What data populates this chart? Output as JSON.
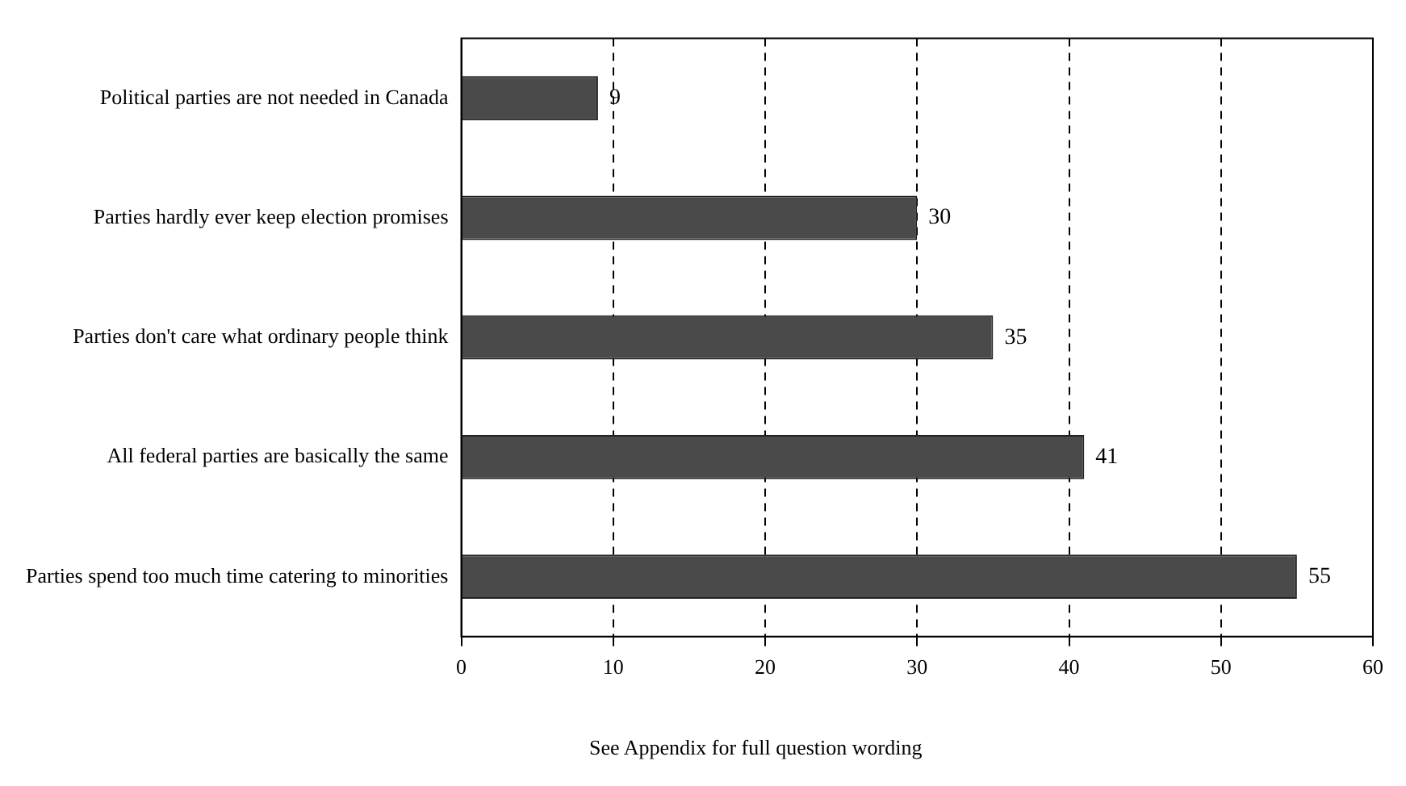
{
  "chart_data": {
    "type": "bar",
    "orientation": "horizontal",
    "categories": [
      "Political parties are not needed in Canada",
      "Parties hardly ever keep election promises",
      "Parties don't care what ordinary people think",
      "All federal parties are basically the same",
      "Parties spend too much time catering to minorities"
    ],
    "values": [
      9,
      30,
      35,
      41,
      55
    ],
    "color": "#4a4a4a",
    "xlim": [
      0,
      60
    ],
    "xticks": [
      0,
      10,
      20,
      30,
      40,
      50,
      60
    ],
    "grid": "x",
    "line_style": "dashed",
    "data_labels": true,
    "legend": false,
    "annotations": [
      "See Appendix for full question wording"
    ]
  }
}
